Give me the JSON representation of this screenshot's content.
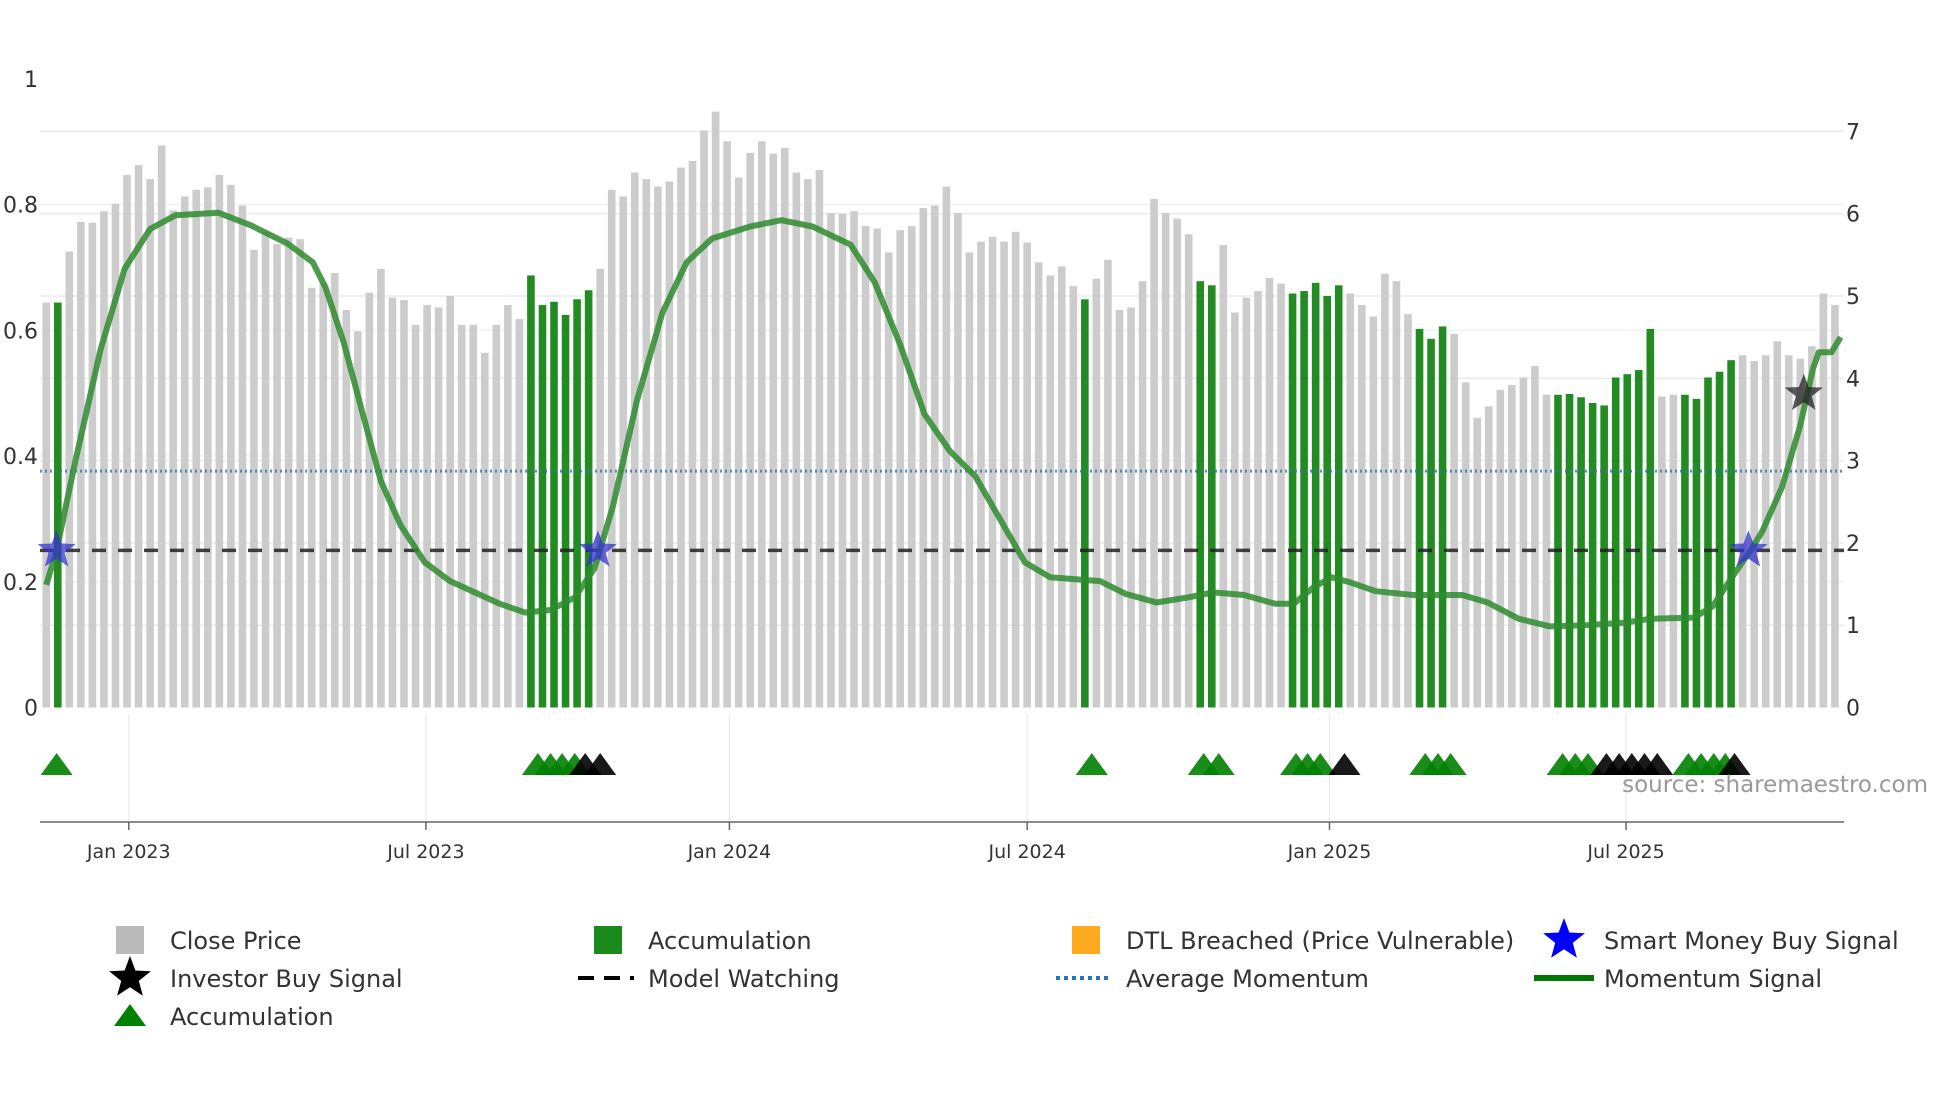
{
  "chart_data": {
    "type": "bar",
    "title": "",
    "x_unit": "week index (weekly bars from late 2022)",
    "left_axis": {
      "ylim": [
        0,
        1
      ],
      "ticks": [
        "0",
        "0.2",
        "0.4",
        "0.6",
        "0.8",
        "1"
      ]
    },
    "right_axis": {
      "ylim": [
        0,
        7
      ],
      "ticks": [
        "0",
        "1",
        "2",
        "3",
        "4",
        "5",
        "6",
        "7"
      ]
    },
    "x_ticks": [
      {
        "week": 7.15,
        "label": "Jan 2023"
      },
      {
        "week": 32.9,
        "label": "Jul 2023"
      },
      {
        "week": 59.2,
        "label": "Jan 2024"
      },
      {
        "week": 85.0,
        "label": "Jul 2024"
      },
      {
        "week": 111.2,
        "label": "Jan 2025"
      },
      {
        "week": 136.9,
        "label": "Jul 2025"
      }
    ],
    "close_price": [
      4.92,
      4.92,
      5.54,
      5.9,
      5.89,
      6.03,
      6.12,
      6.47,
      6.59,
      6.42,
      6.83,
      6.04,
      6.21,
      6.29,
      6.32,
      6.47,
      6.35,
      6.1,
      5.56,
      5.78,
      5.63,
      5.71,
      5.69,
      5.1,
      5.16,
      5.28,
      4.83,
      4.57,
      5.04,
      5.33,
      4.98,
      4.95,
      4.65,
      4.89,
      4.86,
      5.0,
      4.65,
      4.65,
      4.31,
      4.65,
      4.89,
      4.72,
      5.25,
      4.89,
      4.93,
      4.77,
      4.96,
      5.07,
      5.33,
      6.29,
      6.21,
      6.5,
      6.42,
      6.33,
      6.39,
      6.56,
      6.64,
      7.01,
      7.24,
      6.88,
      6.44,
      6.74,
      6.88,
      6.73,
      6.8,
      6.5,
      6.42,
      6.53,
      6.01,
      6.0,
      6.03,
      5.85,
      5.82,
      5.53,
      5.8,
      5.85,
      6.07,
      6.1,
      6.33,
      6.01,
      5.53,
      5.66,
      5.72,
      5.66,
      5.78,
      5.65,
      5.41,
      5.25,
      5.36,
      5.12,
      4.96,
      5.21,
      5.44,
      4.83,
      4.86,
      5.18,
      6.18,
      6.01,
      5.94,
      5.75,
      5.18,
      5.13,
      5.62,
      4.8,
      4.98,
      5.06,
      5.22,
      5.15,
      5.03,
      5.06,
      5.16,
      5.0,
      5.13,
      5.03,
      4.89,
      4.75,
      5.27,
      5.18,
      4.78,
      4.6,
      4.48,
      4.63,
      4.54,
      3.95,
      3.52,
      3.66,
      3.86,
      3.92,
      4.01,
      4.15,
      3.8,
      3.8,
      3.81,
      3.77,
      3.7,
      3.67,
      4.01,
      4.05,
      4.1,
      4.6,
      3.78,
      3.8,
      3.8,
      3.75,
      4.01,
      4.08,
      4.22,
      4.28,
      4.21,
      4.28,
      4.45,
      4.28,
      4.24,
      4.39,
      5.03,
      4.89
    ],
    "accumulation_weeks": [
      1,
      42,
      43,
      44,
      45,
      46,
      47,
      90,
      100,
      101,
      108,
      109,
      110,
      111,
      112,
      119,
      120,
      121,
      131,
      132,
      133,
      134,
      135,
      136,
      137,
      138,
      139,
      142,
      143,
      144,
      145,
      146
    ],
    "momentum_signal": [
      [
        0,
        0.195
      ],
      [
        0.9,
        0.25
      ],
      [
        2.5,
        0.39
      ],
      [
        4.7,
        0.569
      ],
      [
        6.8,
        0.698
      ],
      [
        9,
        0.761
      ],
      [
        11.2,
        0.783
      ],
      [
        14.9,
        0.787
      ],
      [
        17.7,
        0.767
      ],
      [
        20.9,
        0.738
      ],
      [
        23.1,
        0.708
      ],
      [
        24.2,
        0.668
      ],
      [
        25.8,
        0.579
      ],
      [
        27.4,
        0.469
      ],
      [
        29,
        0.36
      ],
      [
        30.7,
        0.29
      ],
      [
        32.8,
        0.231
      ],
      [
        35,
        0.201
      ],
      [
        39.3,
        0.165
      ],
      [
        41.5,
        0.151
      ],
      [
        43.7,
        0.155
      ],
      [
        45.8,
        0.175
      ],
      [
        47.5,
        0.221
      ],
      [
        49.1,
        0.32
      ],
      [
        51.2,
        0.489
      ],
      [
        53.4,
        0.628
      ],
      [
        55.5,
        0.708
      ],
      [
        57.7,
        0.746
      ],
      [
        61,
        0.765
      ],
      [
        63.7,
        0.775
      ],
      [
        66.4,
        0.765
      ],
      [
        69.7,
        0.736
      ],
      [
        71.8,
        0.676
      ],
      [
        74,
        0.577
      ],
      [
        76.1,
        0.467
      ],
      [
        78.3,
        0.408
      ],
      [
        80.5,
        0.368
      ],
      [
        82.7,
        0.298
      ],
      [
        84.8,
        0.231
      ],
      [
        87,
        0.207
      ],
      [
        91.3,
        0.201
      ],
      [
        93.5,
        0.181
      ],
      [
        96.2,
        0.167
      ],
      [
        98.9,
        0.175
      ],
      [
        101.1,
        0.183
      ],
      [
        103.8,
        0.179
      ],
      [
        106.5,
        0.165
      ],
      [
        108.1,
        0.165
      ],
      [
        109.8,
        0.191
      ],
      [
        111.4,
        0.207
      ],
      [
        113,
        0.199
      ],
      [
        115.2,
        0.185
      ],
      [
        118.4,
        0.179
      ],
      [
        122.7,
        0.179
      ],
      [
        124.9,
        0.167
      ],
      [
        127.6,
        0.141
      ],
      [
        130.3,
        0.129
      ],
      [
        133.6,
        0.131
      ],
      [
        136.8,
        0.135
      ],
      [
        139,
        0.141
      ],
      [
        142.8,
        0.143
      ],
      [
        144.4,
        0.161
      ],
      [
        146.6,
        0.221
      ],
      [
        147.7,
        0.25
      ],
      [
        148.7,
        0.28
      ],
      [
        150.4,
        0.35
      ],
      [
        152,
        0.449
      ],
      [
        153.1,
        0.539
      ],
      [
        153.6,
        0.565
      ],
      [
        154.7,
        0.565
      ],
      [
        155.5,
        0.589
      ]
    ],
    "average_momentum": 0.376,
    "model_watching_level": 0.25,
    "smart_money_buy_signals": [
      {
        "week": 0.9,
        "value": 0.25
      },
      {
        "week": 47.8,
        "value": 0.25
      },
      {
        "week": 147.5,
        "value": 0.25
      }
    ],
    "investor_buy_signals": [
      {
        "week": 152.3,
        "value": 0.499
      }
    ],
    "triangle_markers": [
      {
        "week": 0.9,
        "color": "green"
      },
      {
        "week": 42.6,
        "color": "green"
      },
      {
        "week": 43.7,
        "color": "green"
      },
      {
        "week": 44.7,
        "color": "green"
      },
      {
        "week": 45.8,
        "color": "green"
      },
      {
        "week": 46.7,
        "color": "black"
      },
      {
        "week": 48.0,
        "color": "black"
      },
      {
        "week": 90.6,
        "color": "green"
      },
      {
        "week": 100.3,
        "color": "green"
      },
      {
        "week": 101.6,
        "color": "green"
      },
      {
        "week": 108.3,
        "color": "green"
      },
      {
        "week": 109.3,
        "color": "green"
      },
      {
        "week": 110.4,
        "color": "green"
      },
      {
        "week": 112.5,
        "color": "black"
      },
      {
        "week": 119.5,
        "color": "green"
      },
      {
        "week": 120.6,
        "color": "green"
      },
      {
        "week": 121.7,
        "color": "green"
      },
      {
        "week": 131.4,
        "color": "green"
      },
      {
        "week": 132.5,
        "color": "green"
      },
      {
        "week": 133.6,
        "color": "green"
      },
      {
        "week": 135.2,
        "color": "black"
      },
      {
        "week": 136.3,
        "color": "black"
      },
      {
        "week": 137.4,
        "color": "black"
      },
      {
        "week": 138.5,
        "color": "black"
      },
      {
        "week": 139.6,
        "color": "black"
      },
      {
        "week": 142.3,
        "color": "green"
      },
      {
        "week": 143.4,
        "color": "green"
      },
      {
        "week": 144.5,
        "color": "green"
      },
      {
        "week": 145.5,
        "color": "green"
      },
      {
        "week": 146.3,
        "color": "black"
      }
    ],
    "legend": [
      {
        "label": "Close Price",
        "symbol": "square",
        "color": "#bbbbbb"
      },
      {
        "label": "Accumulation",
        "symbol": "square",
        "color": "#1a8a1a"
      },
      {
        "label": "DTL Breached (Price Vulnerable)",
        "symbol": "square",
        "color": "#ffa91f"
      },
      {
        "label": "Smart Money Buy Signal",
        "symbol": "star",
        "color": "#0000ff"
      },
      {
        "label": "Investor Buy Signal",
        "symbol": "star",
        "color": "#000000"
      },
      {
        "label": "Model Watching",
        "symbol": "dash",
        "color": "#000000"
      },
      {
        "label": "Average Momentum",
        "symbol": "dot",
        "color": "#1f77b4"
      },
      {
        "label": "Momentum Signal",
        "symbol": "line",
        "color": "#007700"
      },
      {
        "label": "Accumulation",
        "symbol": "triangle",
        "color": "#008000"
      }
    ],
    "legend_placement": "bottom"
  },
  "source": "source: sharemaestro.com"
}
